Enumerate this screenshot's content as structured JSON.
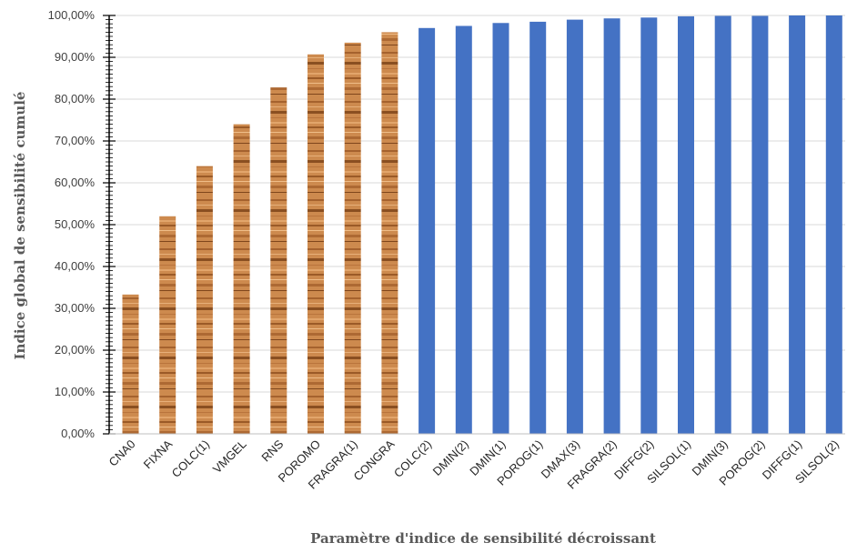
{
  "chart_data": {
    "type": "bar",
    "title": "",
    "xlabel": "Paramètre d'indice de sensibilité décroissant",
    "ylabel": "Indice global de sensibilité cumulé",
    "ylim": [
      0,
      100
    ],
    "yticks": [
      0,
      10,
      20,
      30,
      40,
      50,
      60,
      70,
      80,
      90,
      100
    ],
    "ytick_labels": [
      "0,00%",
      "10,00%",
      "20,00%",
      "30,00%",
      "40,00%",
      "50,00%",
      "60,00%",
      "70,00%",
      "80,00%",
      "90,00%",
      "100,00%"
    ],
    "grid": true,
    "categories": [
      "CNA0",
      "FIXNA",
      "COLC(1)",
      "VMGEL",
      "RNS",
      "POROMO",
      "FRAGRA(1)",
      "CONGRA",
      "COLC(2)",
      "DMIN(2)",
      "DMIN(1)",
      "POROG(1)",
      "DMAX(3)",
      "FRAGRA(2)",
      "DIFFG(2)",
      "SILSOL(1)",
      "DMIN(3)",
      "POROG(2)",
      "DIFFG(1)",
      "SILSOL(2)"
    ],
    "values": [
      33.3,
      52.0,
      64.0,
      74.0,
      82.8,
      90.7,
      93.5,
      96.0,
      97.0,
      97.5,
      98.2,
      98.5,
      99.0,
      99.3,
      99.5,
      99.8,
      99.9,
      99.9,
      100.0,
      100.0
    ],
    "highlighted_count": 8,
    "colors": {
      "highlighted": "#cd8a4e",
      "highlighted_dark": "#8a4f21",
      "default": "#4472c4",
      "grid": "#d9d9d9",
      "axis": "#000000"
    }
  }
}
